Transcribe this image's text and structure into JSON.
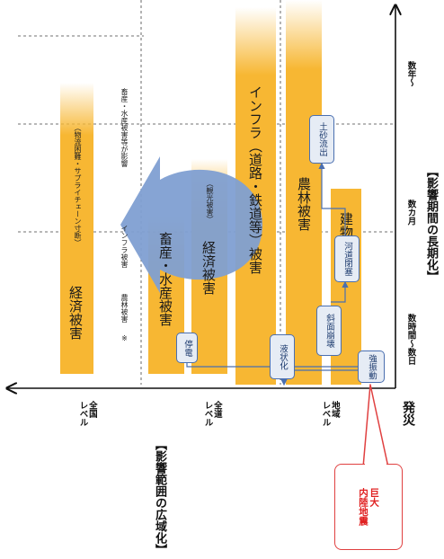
{
  "top_axis": {
    "title": "【影響期間の長期化】",
    "ticks": [
      "数時間〜数日",
      "数カ月",
      "数年〜"
    ]
  },
  "left_axis": {
    "title": "【影響範囲の広域化】",
    "levels": [
      "全国\nレベル",
      "全道\nレベル",
      "地域\nレベル"
    ]
  },
  "origin_label": "発災",
  "trigger_boxes": {
    "strong_shaking": "強振動",
    "liquefaction": "液状化",
    "slope_failure": "斜面崩壊",
    "river_blockage": "河道閉塞",
    "sediment_flow": "土砂流出",
    "power_outage": "停電"
  },
  "bars": {
    "economic_national": "経済被害",
    "economic_national_note": "（物流困難・サプライチェーン寸断）",
    "livestock": "畜産・水産被害",
    "economic_regional": "経済被害",
    "economic_regional_note": "（観光被害）",
    "infrastructure": "インフラ（道路・鉄道等）被害",
    "agri_forest": "農林被害",
    "building": "建物被害"
  },
  "arrow_labels": {
    "agri_forest": "農林被害",
    "infrastructure": "インフラ被害",
    "livestock": "畜産・水産被害等が影響"
  },
  "note_mark": "※",
  "callout": "巨大\n内陸地震",
  "colors": {
    "bar": "#f7b733",
    "arrow": "#7f9fd2",
    "box_border": "#4a6fb0",
    "box_fill": "#e6ecf5",
    "callout": "#e02020"
  }
}
